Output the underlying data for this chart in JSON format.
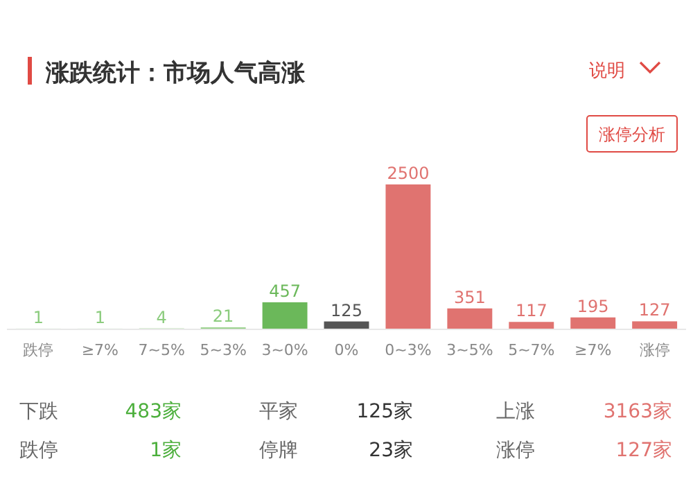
{
  "chart_data": {
    "type": "bar",
    "title": "涨跌统计：市场人气高涨",
    "categories": [
      "跌停",
      "≥7%",
      "7~5%",
      "5~3%",
      "3~0%",
      "0%",
      "0~3%",
      "3~5%",
      "5~7%",
      "≥7%",
      "涨停"
    ],
    "values": [
      1,
      1,
      4,
      21,
      457,
      125,
      2500,
      351,
      117,
      195,
      127
    ],
    "colors": [
      "#8ccc7e",
      "#8ccc7e",
      "#8ccc7e",
      "#8ccc7e",
      "#6bb85a",
      "#555555",
      "#e07370",
      "#e07370",
      "#e07370",
      "#e07370",
      "#e07370"
    ],
    "data_labels": true,
    "annotations": [
      "说明",
      "涨停分析",
      "下跌",
      "483家",
      "平家",
      "125家",
      "上涨",
      "3163家",
      "跌停",
      "1家",
      "停牌",
      "23家",
      "涨停",
      "127家"
    ]
  }
}
